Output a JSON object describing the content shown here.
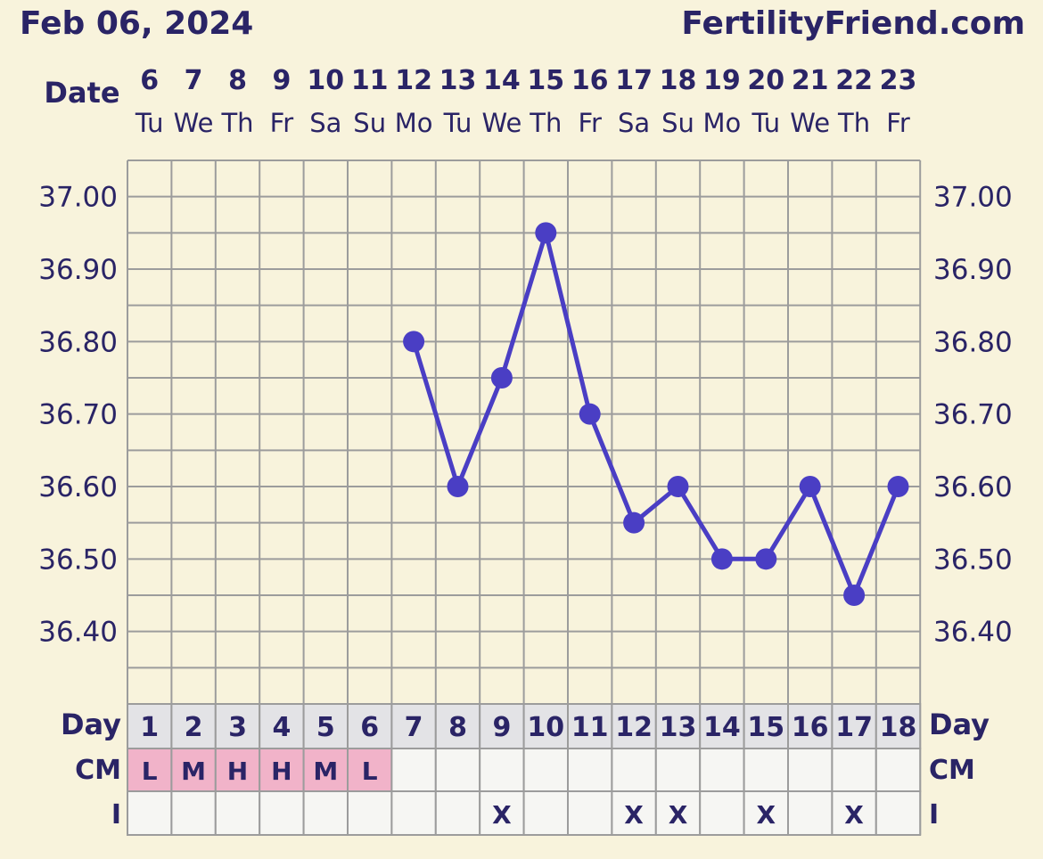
{
  "header": {
    "date_title": "Feb 06, 2024",
    "site": "FertilityFriend.com"
  },
  "labels": {
    "date": "Date",
    "day": "Day",
    "cm": "CM",
    "intercourse": "I"
  },
  "colors": {
    "background": "#f8f3dc",
    "text": "#2a2466",
    "grid": "#9c9c9c",
    "line": "#4a3ec4",
    "day_row": "#e3e3e6",
    "table_cell": "#f6f6f3",
    "cm_cell": "#f1b3c9"
  },
  "chart_data": {
    "type": "line",
    "dates": [
      "6",
      "7",
      "8",
      "9",
      "10",
      "11",
      "12",
      "13",
      "14",
      "15",
      "16",
      "17",
      "18",
      "19",
      "20",
      "21",
      "22",
      "23"
    ],
    "weekdays": [
      "Tu",
      "We",
      "Th",
      "Fr",
      "Sa",
      "Su",
      "Mo",
      "Tu",
      "We",
      "Th",
      "Fr",
      "Sa",
      "Su",
      "Mo",
      "Tu",
      "We",
      "Th",
      "Fr"
    ],
    "cycle_days": [
      "1",
      "2",
      "3",
      "4",
      "5",
      "6",
      "7",
      "8",
      "9",
      "10",
      "11",
      "12",
      "13",
      "14",
      "15",
      "16",
      "17",
      "18"
    ],
    "y_ticks": [
      "37.00",
      "36.90",
      "36.80",
      "36.70",
      "36.60",
      "36.50",
      "36.40"
    ],
    "ylim": [
      36.3,
      37.05
    ],
    "series": [
      {
        "values": [
          null,
          null,
          null,
          null,
          null,
          null,
          36.8,
          36.6,
          36.75,
          36.95,
          36.7,
          36.55,
          36.6,
          36.5,
          36.5,
          36.6,
          36.45,
          36.6
        ]
      }
    ],
    "cervical_mucus": [
      "L",
      "M",
      "H",
      "H",
      "M",
      "L",
      "",
      "",
      "",
      "",
      "",
      "",
      "",
      "",
      "",
      "",
      "",
      ""
    ],
    "intercourse": [
      "",
      "",
      "",
      "",
      "",
      "",
      "",
      "",
      "X",
      "",
      "",
      "X",
      "X",
      "",
      "X",
      "",
      "X",
      ""
    ]
  }
}
